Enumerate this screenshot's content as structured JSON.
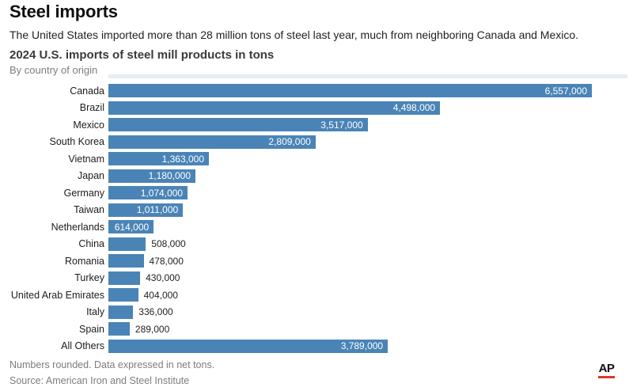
{
  "header": {
    "title": "Steel imports",
    "description": "The United States imported more than 28 million tons of steel last year, much from neighboring Canada and Mexico.",
    "chart_title": "2024 U.S. imports of steel mill products in tons",
    "chart_subtitle": "By country of origin"
  },
  "chart_data": {
    "type": "bar",
    "orientation": "horizontal",
    "title": "2024 U.S. imports of steel mill products in tons",
    "subtitle": "By country of origin",
    "categories": [
      "Canada",
      "Brazil",
      "Mexico",
      "South Korea",
      "Vietnam",
      "Japan",
      "Germany",
      "Taiwan",
      "Netherlands",
      "China",
      "Romania",
      "Turkey",
      "United Arab Emirates",
      "Italy",
      "Spain",
      "All Others"
    ],
    "values": [
      6557000,
      4498000,
      3517000,
      2809000,
      1363000,
      1180000,
      1074000,
      1011000,
      614000,
      508000,
      478000,
      430000,
      404000,
      336000,
      289000,
      3789000
    ],
    "value_labels": [
      "6,557,000",
      "4,498,000",
      "3,517,000",
      "2,809,000",
      "1,363,000",
      "1,180,000",
      "1,074,000",
      "1,011,000",
      "614,000",
      "508,000",
      "478,000",
      "430,000",
      "404,000",
      "336,000",
      "289,000",
      "3,789,000"
    ],
    "xlim": [
      0,
      6557000
    ],
    "grid": false,
    "legend": "none",
    "bar_color": "#4a84b7",
    "value_label_color_inside": "#ffffff",
    "value_label_color_outside": "#222222",
    "value_label_position": "inside-end for wide bars, outside-end for narrow bars"
  },
  "footer": {
    "note": "Numbers rounded. Data expressed in net tons.",
    "source": "Source: American Iron and Steel Institute",
    "logo_text": "AP",
    "logo_underline_color": "#e0362c"
  }
}
